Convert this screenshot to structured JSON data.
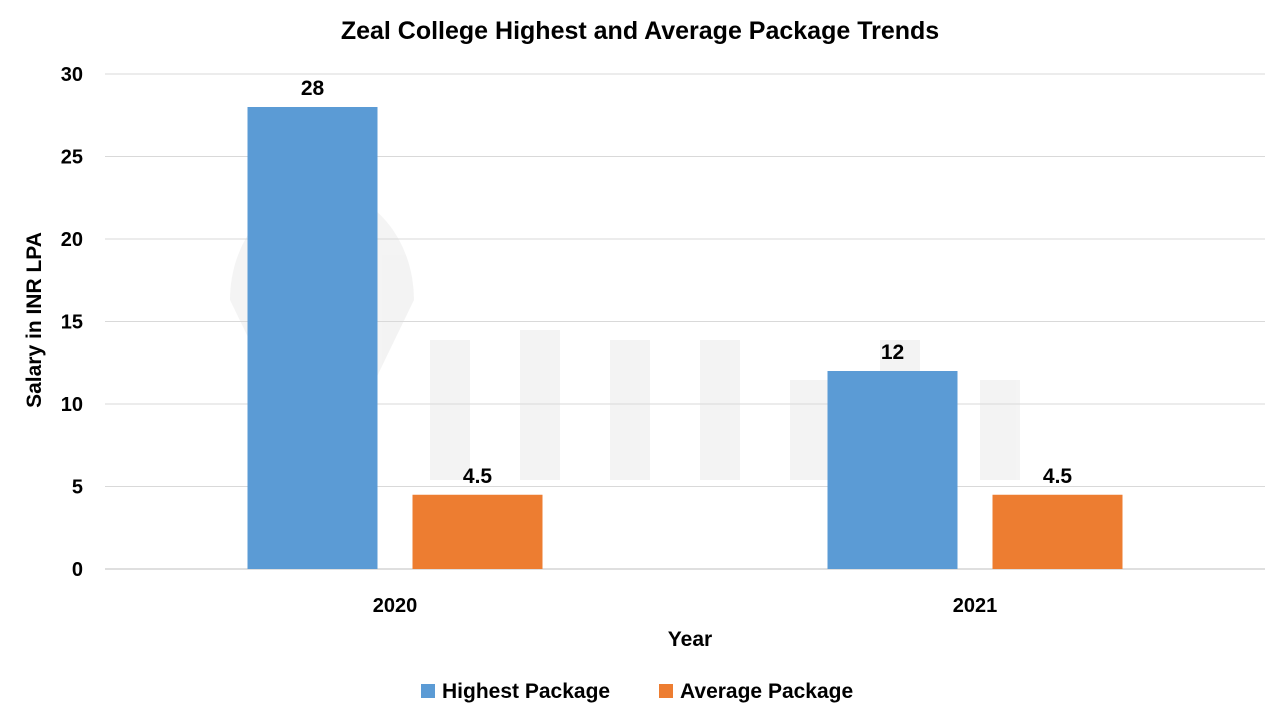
{
  "chart_data": {
    "type": "bar",
    "title": "Zeal College Highest and Average Package Trends",
    "xlabel": "Year",
    "ylabel": "Salary in INR LPA",
    "categories": [
      "2020",
      "2021"
    ],
    "series": [
      {
        "name": "Highest Package",
        "values": [
          28,
          12
        ],
        "color": "#5B9BD5"
      },
      {
        "name": "Average Package",
        "values": [
          4.5,
          4.5
        ],
        "color": "#ED7D31"
      }
    ],
    "ylim": [
      0,
      30
    ],
    "yticks": [
      0,
      5,
      10,
      15,
      20,
      25,
      30
    ],
    "grid": true,
    "legend": "bottom",
    "watermark": "shiksha"
  }
}
